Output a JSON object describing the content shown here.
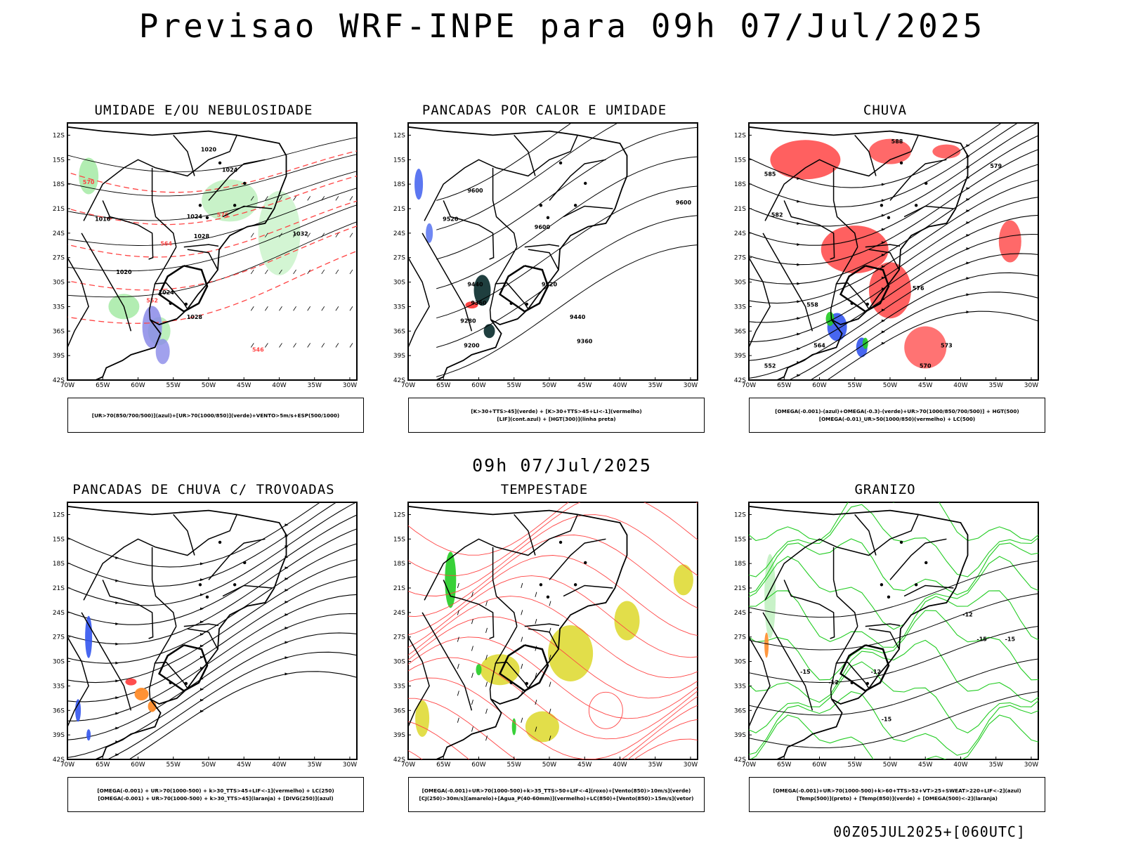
{
  "header": {
    "title": "Previsao WRF-INPE  para 09h 07/Jul/2025"
  },
  "middle": {
    "title": "09h 07/Jul/2025"
  },
  "footer": {
    "run": "00Z05JUL2025+[060UTC]"
  },
  "colors": {
    "blue": "#3355ee",
    "green": "#22cc22",
    "red": "#ff4444",
    "orange": "#ff8c2a",
    "yellow": "#e0dc40",
    "dark_teal": "#1f3f3f",
    "lavender": "#8a8ae8",
    "black": "#000000"
  },
  "axes": {
    "lat_labels": [
      "12S",
      "15S",
      "18S",
      "21S",
      "24S",
      "27S",
      "30S",
      "33S",
      "36S",
      "39S",
      "42S"
    ],
    "lon_labels": [
      "70W",
      "65W",
      "60W",
      "55W",
      "50W",
      "45W",
      "40W",
      "35W",
      "30W"
    ]
  },
  "chart_data": [
    {
      "type": "map",
      "title": "UMIDADE E/OU NEBULOSIDADE",
      "legend": [
        "[UR>70(850/700/500)](azul)+[UR>70(1000/850)](verde)+VENTO>5m/s+ESP(500/1000)"
      ],
      "contour_labels": [
        "1020",
        "1024",
        "1024",
        "1028",
        "1032",
        "1016",
        "1020",
        "1024",
        "1028",
        "552",
        "564",
        "570",
        "576",
        "546"
      ]
    },
    {
      "type": "map",
      "title": "PANCADAS POR CALOR E UMIDADE",
      "legend": [
        "[K>30+TTS>45](verde) + [K>30+TTS>45+LI<-1](vermelho)",
        "[LIF](cont.azul) + [HGT(300)](linha preta)"
      ],
      "contour_labels": [
        "9600",
        "9520",
        "9600",
        "9520",
        "9440",
        "9360",
        "9280",
        "9200",
        "9440",
        "9360",
        "9600"
      ]
    },
    {
      "type": "map",
      "title": "CHUVA",
      "legend": [
        "[OMEGA(-0.001)-(azul)+OMEGA(-0.3)-(verde)+UR>70(1000/850/700/500)] + HGT(500)",
        "[OMEGA(-0.01)_UR>50(1000/850)(vermelho) + LC(500)"
      ],
      "contour_labels": [
        "588",
        "585",
        "582",
        "579",
        "576",
        "573",
        "570",
        "564",
        "558",
        "552"
      ]
    },
    {
      "type": "map",
      "title": "PANCADAS DE CHUVA C/ TROVOADAS",
      "legend": [
        "[OMEGA(-0.001) + UR>70(1000-500) + k>30_TTS>45+LIF<-1](vermelho) + LC(250)",
        "[OMEGA(-0.001) + UR>70(1000-500) + k>30_TTS>45](laranja) + [DIVG(250)](azul)"
      ],
      "contour_labels": []
    },
    {
      "type": "map",
      "title": "TEMPESTADE",
      "legend": [
        "[OMEGA(-0.001)+UR>70(1000-500)+k>35_TTS>50+LIF<-4](roxo)+[Vento(850)>10m/s](verde)",
        "[CJ(250)>30m/s](amarelo)+[Agua_P(40-60mm)](vermelho)+LC(850)+[Vento(850)>15m/s](vetor)"
      ],
      "contour_labels": []
    },
    {
      "type": "map",
      "title": "GRANIZO",
      "legend": [
        "[OMEGA(-0.001)+UR>70(1000-500)+k>60+TTS>52+VT>25+SWEAT>220+LIF<-2](azul)",
        "[Temp(500)](preto) + [Temp(850)](verde) + [OMEGA(500)<-2](laranja)"
      ],
      "contour_labels": [
        "-12",
        "-15",
        "-12",
        "-15",
        "-15",
        "-15",
        "-12"
      ]
    }
  ]
}
